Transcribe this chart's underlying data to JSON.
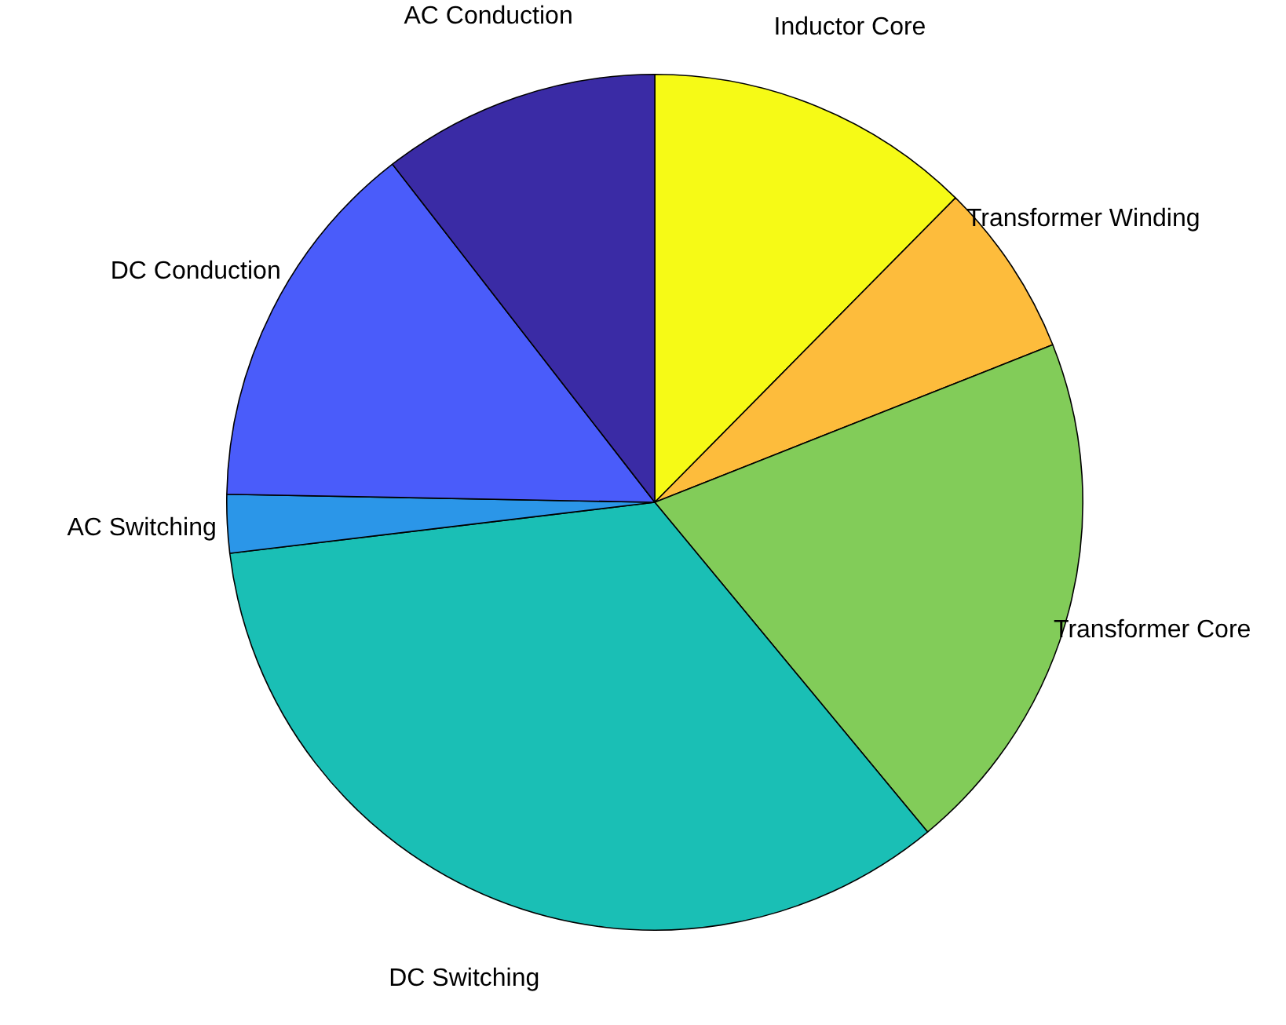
{
  "chart_data": {
    "type": "pie",
    "categories": [
      "Inductor Core",
      "Transformer Winding",
      "Transformer Core",
      "DC Switching",
      "AC Switching",
      "DC Conduction",
      "AC Conduction"
    ],
    "values": [
      12.4,
      6.6,
      20.0,
      34.1,
      2.2,
      14.2,
      10.5
    ],
    "colors": [
      "#f6fa16",
      "#fdbc3c",
      "#82cc59",
      "#1abfb5",
      "#2b96e8",
      "#4a5cfa",
      "#3a2ba5"
    ],
    "legend": false
  }
}
